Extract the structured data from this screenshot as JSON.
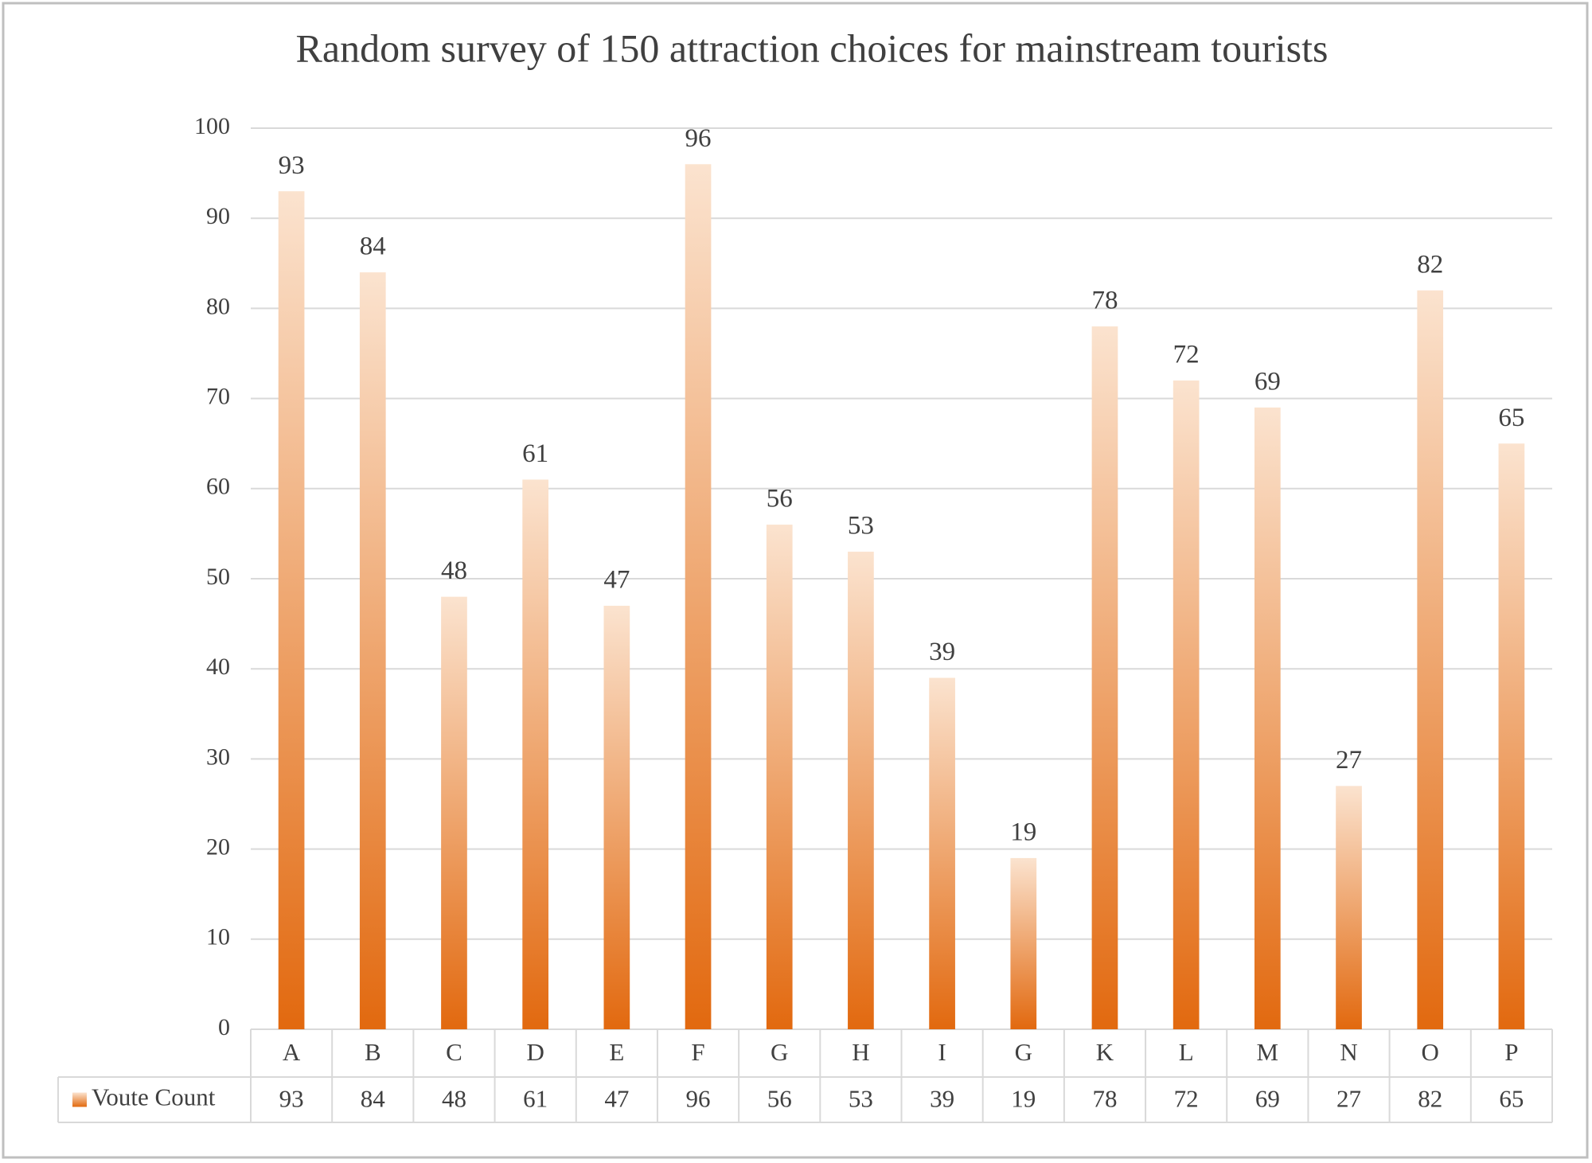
{
  "chart_data": {
    "type": "bar",
    "title": "Random survey of 150 attraction choices for mainstream tourists",
    "categories": [
      "A",
      "B",
      "C",
      "D",
      "E",
      "F",
      "G",
      "H",
      "I",
      "G",
      "K",
      "L",
      "M",
      "N",
      "O",
      "P"
    ],
    "series": [
      {
        "name": "Voute Count",
        "color": "#e2690f",
        "values": [
          93,
          84,
          48,
          61,
          47,
          96,
          56,
          53,
          39,
          19,
          78,
          72,
          69,
          27,
          82,
          65
        ]
      }
    ],
    "ylim": [
      0,
      100
    ],
    "yticks": [
      0,
      10,
      20,
      30,
      40,
      50,
      60,
      70,
      80,
      90,
      100
    ],
    "grid": true
  }
}
